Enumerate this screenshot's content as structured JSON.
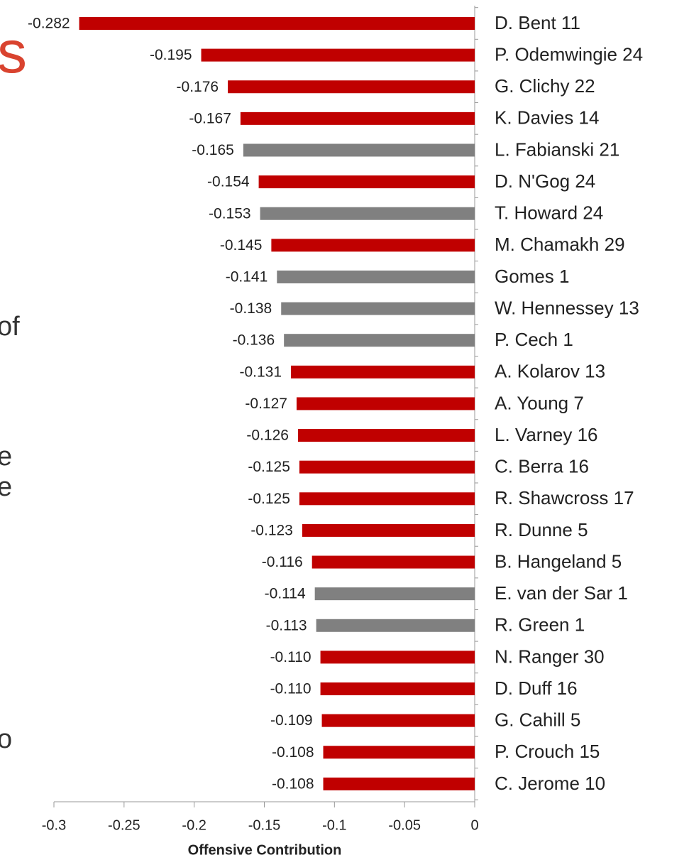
{
  "chart_data": {
    "type": "barh",
    "categories": [
      "D. Bent 11",
      "P. Odemwingie 24",
      "G. Clichy 22",
      "K. Davies 14",
      "L. Fabianski 21",
      "D. N'Gog 24",
      "T. Howard 24",
      "M. Chamakh 29",
      "Gomes 1",
      "W. Hennessey 13",
      "P. Cech 1",
      "A. Kolarov 13",
      "A. Young 7",
      "L. Varney 16",
      "C. Berra 16",
      "R. Shawcross 17",
      "R. Dunne 5",
      "B. Hangeland 5",
      "E. van der Sar 1",
      "R. Green 1",
      "N. Ranger 30",
      "D. Duff 16",
      "G. Cahill 5",
      "P. Crouch 15",
      "C. Jerome 10"
    ],
    "values": [
      -0.282,
      -0.195,
      -0.176,
      -0.167,
      -0.165,
      -0.154,
      -0.153,
      -0.145,
      -0.141,
      -0.138,
      -0.136,
      -0.131,
      -0.127,
      -0.126,
      -0.125,
      -0.125,
      -0.123,
      -0.116,
      -0.114,
      -0.113,
      -0.11,
      -0.11,
      -0.109,
      -0.108,
      -0.108
    ],
    "value_labels": [
      "-0.282",
      "-0.195",
      "-0.176",
      "-0.167",
      "-0.165",
      "-0.154",
      "-0.153",
      "-0.145",
      "-0.141",
      "-0.138",
      "-0.136",
      "-0.131",
      "-0.127",
      "-0.126",
      "-0.125",
      "-0.125",
      "-0.123",
      "-0.116",
      "-0.114",
      "-0.113",
      "-0.110",
      "-0.110",
      "-0.109",
      "-0.108",
      "-0.108"
    ],
    "colors": [
      "#c00000",
      "#c00000",
      "#c00000",
      "#c00000",
      "#808080",
      "#c00000",
      "#808080",
      "#c00000",
      "#808080",
      "#808080",
      "#808080",
      "#c00000",
      "#c00000",
      "#c00000",
      "#c00000",
      "#c00000",
      "#c00000",
      "#c00000",
      "#808080",
      "#808080",
      "#c00000",
      "#c00000",
      "#c00000",
      "#c00000",
      "#c00000"
    ],
    "x_label": "Offensive Contribution",
    "xlim": [
      -0.3,
      0
    ],
    "xticks": [
      -0.3,
      -0.25,
      -0.2,
      -0.15,
      -0.1,
      -0.05,
      0
    ],
    "annotations": [
      "s",
      "of",
      "e",
      "e",
      "o"
    ]
  }
}
